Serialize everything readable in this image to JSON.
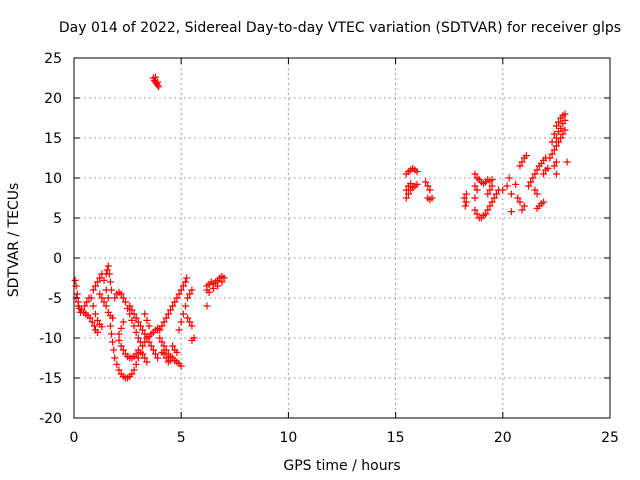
{
  "chart_data": {
    "type": "scatter",
    "title": "Day 014 of 2022, Sidereal Day-to-day VTEC variation (SDTVAR) for receiver glps",
    "xlabel": "GPS time / hours",
    "ylabel": "SDTVAR / TECUs",
    "xlim": [
      0,
      25
    ],
    "ylim": [
      -20,
      25
    ],
    "xticks": [
      0,
      5,
      10,
      15,
      20,
      25
    ],
    "yticks": [
      -20,
      -15,
      -10,
      -5,
      0,
      5,
      10,
      15,
      20,
      25
    ],
    "grid": true,
    "marker": "+",
    "color": "#ff0000",
    "series": [
      {
        "name": "SDTVAR",
        "points": [
          [
            0.05,
            -2.8
          ],
          [
            0.1,
            -3.5
          ],
          [
            0.15,
            -4.5
          ],
          [
            0.2,
            -5.5
          ],
          [
            0.25,
            -6.3
          ],
          [
            0.3,
            -6.8
          ],
          [
            0.1,
            -5.0
          ],
          [
            0.2,
            -6.0
          ],
          [
            0.35,
            -6.5
          ],
          [
            0.45,
            -6.8
          ],
          [
            0.55,
            -7.0
          ],
          [
            0.65,
            -7.2
          ],
          [
            0.75,
            -7.5
          ],
          [
            0.85,
            -8.0
          ],
          [
            0.95,
            -8.5
          ],
          [
            1.0,
            -9.0
          ],
          [
            1.1,
            -9.3
          ],
          [
            0.5,
            -6.0
          ],
          [
            0.6,
            -5.5
          ],
          [
            0.7,
            -5.0
          ],
          [
            0.8,
            -5.0
          ],
          [
            0.9,
            -6.0
          ],
          [
            1.0,
            -7.0
          ],
          [
            1.1,
            -7.8
          ],
          [
            1.2,
            -8.3
          ],
          [
            1.3,
            -8.6
          ],
          [
            0.9,
            -4.0
          ],
          [
            1.0,
            -3.5
          ],
          [
            1.1,
            -3.0
          ],
          [
            1.2,
            -2.5
          ],
          [
            1.3,
            -2.0
          ],
          [
            1.4,
            -2.8
          ],
          [
            1.5,
            -4.0
          ],
          [
            1.6,
            -5.0
          ],
          [
            1.2,
            -4.5
          ],
          [
            1.3,
            -5.0
          ],
          [
            1.4,
            -5.5
          ],
          [
            1.5,
            -6.0
          ],
          [
            1.6,
            -6.8
          ],
          [
            1.7,
            -7.2
          ],
          [
            1.8,
            -7.5
          ],
          [
            1.5,
            -2.0
          ],
          [
            1.55,
            -1.5
          ],
          [
            1.6,
            -1.0
          ],
          [
            1.65,
            -2.0
          ],
          [
            1.7,
            -3.0
          ],
          [
            1.75,
            -4.0
          ],
          [
            1.7,
            -8.5
          ],
          [
            1.75,
            -9.5
          ],
          [
            1.8,
            -10.5
          ],
          [
            1.85,
            -11.5
          ],
          [
            1.9,
            -12.5
          ],
          [
            2.0,
            -13.3
          ],
          [
            2.1,
            -14.0
          ],
          [
            2.2,
            -14.5
          ],
          [
            2.3,
            -14.8
          ],
          [
            2.4,
            -15.0
          ],
          [
            2.5,
            -15.0
          ],
          [
            2.6,
            -14.8
          ],
          [
            2.7,
            -14.5
          ],
          [
            2.8,
            -14.0
          ],
          [
            2.9,
            -13.3
          ],
          [
            3.0,
            -12.5
          ],
          [
            3.1,
            -11.8
          ],
          [
            3.2,
            -11.0
          ],
          [
            3.3,
            -10.5
          ],
          [
            3.4,
            -10.0
          ],
          [
            3.5,
            -9.8
          ],
          [
            3.6,
            -9.5
          ],
          [
            3.7,
            -9.3
          ],
          [
            3.8,
            -9.0
          ],
          [
            3.9,
            -8.8
          ],
          [
            1.9,
            -5.0
          ],
          [
            2.0,
            -4.5
          ],
          [
            2.1,
            -4.3
          ],
          [
            2.2,
            -4.5
          ],
          [
            2.3,
            -5.0
          ],
          [
            2.4,
            -5.5
          ],
          [
            2.5,
            -6.3
          ],
          [
            2.6,
            -7.0
          ],
          [
            2.7,
            -7.8
          ],
          [
            2.8,
            -8.5
          ],
          [
            2.9,
            -9.3
          ],
          [
            3.0,
            -10.0
          ],
          [
            2.3,
            -8.0
          ],
          [
            2.2,
            -8.8
          ],
          [
            2.1,
            -9.5
          ],
          [
            2.1,
            -10.3
          ],
          [
            2.2,
            -11.0
          ],
          [
            2.3,
            -11.5
          ],
          [
            2.4,
            -12.0
          ],
          [
            2.5,
            -12.3
          ],
          [
            2.6,
            -12.5
          ],
          [
            2.7,
            -12.5
          ],
          [
            2.8,
            -12.3
          ],
          [
            2.9,
            -12.0
          ],
          [
            3.0,
            -11.5
          ],
          [
            3.1,
            -10.5
          ],
          [
            2.6,
            -6.0
          ],
          [
            2.7,
            -6.5
          ],
          [
            2.8,
            -7.0
          ],
          [
            2.9,
            -7.5
          ],
          [
            3.0,
            -8.0
          ],
          [
            3.1,
            -8.5
          ],
          [
            3.2,
            -9.0
          ],
          [
            3.3,
            -9.5
          ],
          [
            3.4,
            -10.0
          ],
          [
            3.5,
            -10.5
          ],
          [
            3.6,
            -11.0
          ],
          [
            3.7,
            -11.5
          ],
          [
            3.8,
            -12.0
          ],
          [
            3.9,
            -12.5
          ],
          [
            3.3,
            -7.0
          ],
          [
            3.4,
            -7.8
          ],
          [
            3.5,
            -8.5
          ],
          [
            3.2,
            -12.0
          ],
          [
            3.3,
            -12.5
          ],
          [
            3.4,
            -13.0
          ],
          [
            3.7,
            22.5
          ],
          [
            3.75,
            22.2
          ],
          [
            3.8,
            22.0
          ],
          [
            3.85,
            21.8
          ],
          [
            3.9,
            21.6
          ],
          [
            3.95,
            21.4
          ],
          [
            3.8,
            22.6
          ],
          [
            3.9,
            22.0
          ],
          [
            3.9,
            -9.0
          ],
          [
            4.0,
            -10.0
          ],
          [
            4.1,
            -10.5
          ],
          [
            4.2,
            -11.0
          ],
          [
            4.3,
            -11.5
          ],
          [
            4.4,
            -12.0
          ],
          [
            4.5,
            -12.3
          ],
          [
            4.6,
            -12.5
          ],
          [
            4.7,
            -12.8
          ],
          [
            4.8,
            -13.0
          ],
          [
            4.9,
            -13.2
          ],
          [
            5.0,
            -13.5
          ],
          [
            4.6,
            -11.0
          ],
          [
            4.7,
            -11.5
          ],
          [
            4.8,
            -11.8
          ],
          [
            4.5,
            -12.8
          ],
          [
            4.4,
            -13.0
          ],
          [
            4.3,
            -12.5
          ],
          [
            4.2,
            -12.0
          ],
          [
            4.1,
            -11.8
          ],
          [
            4.0,
            -9.0
          ],
          [
            4.1,
            -8.5
          ],
          [
            4.2,
            -8.0
          ],
          [
            4.3,
            -7.5
          ],
          [
            4.4,
            -7.0
          ],
          [
            4.5,
            -6.5
          ],
          [
            4.6,
            -6.0
          ],
          [
            4.7,
            -5.5
          ],
          [
            4.8,
            -5.0
          ],
          [
            4.9,
            -4.5
          ],
          [
            5.0,
            -4.0
          ],
          [
            5.1,
            -3.5
          ],
          [
            5.2,
            -3.0
          ],
          [
            5.25,
            -2.5
          ],
          [
            4.9,
            -9.0
          ],
          [
            5.0,
            -8.0
          ],
          [
            5.1,
            -7.0
          ],
          [
            5.2,
            -6.0
          ],
          [
            5.3,
            -5.0
          ],
          [
            5.4,
            -4.5
          ],
          [
            5.5,
            -4.0
          ],
          [
            5.3,
            -7.5
          ],
          [
            5.4,
            -8.0
          ],
          [
            5.5,
            -8.5
          ],
          [
            5.5,
            -10.3
          ],
          [
            5.6,
            -10.0
          ],
          [
            6.2,
            -3.5
          ],
          [
            6.3,
            -3.3
          ],
          [
            6.4,
            -3.0
          ],
          [
            6.5,
            -3.2
          ],
          [
            6.6,
            -3.0
          ],
          [
            6.7,
            -2.8
          ],
          [
            6.8,
            -2.5
          ],
          [
            6.9,
            -2.3
          ],
          [
            7.0,
            -2.5
          ],
          [
            6.2,
            -4.0
          ],
          [
            6.3,
            -4.3
          ],
          [
            6.5,
            -3.8
          ],
          [
            6.7,
            -3.5
          ],
          [
            6.9,
            -3.0
          ],
          [
            6.2,
            -6.0
          ],
          [
            15.5,
            7.5
          ],
          [
            15.6,
            8.0
          ],
          [
            15.7,
            8.5
          ],
          [
            15.8,
            8.8
          ],
          [
            15.9,
            9.0
          ],
          [
            16.0,
            9.2
          ],
          [
            15.5,
            8.5
          ],
          [
            15.6,
            9.0
          ],
          [
            15.7,
            9.3
          ],
          [
            15.5,
            10.5
          ],
          [
            15.6,
            10.8
          ],
          [
            15.7,
            11.0
          ],
          [
            15.8,
            11.2
          ],
          [
            15.9,
            11.0
          ],
          [
            16.0,
            10.8
          ],
          [
            16.4,
            9.5
          ],
          [
            16.5,
            9.0
          ],
          [
            16.6,
            8.5
          ],
          [
            16.5,
            7.5
          ],
          [
            16.6,
            7.3
          ],
          [
            16.7,
            7.5
          ],
          [
            18.2,
            7.5
          ],
          [
            18.3,
            7.0
          ],
          [
            18.25,
            6.5
          ],
          [
            18.3,
            8.0
          ],
          [
            18.7,
            10.5
          ],
          [
            18.8,
            10.0
          ],
          [
            18.9,
            9.8
          ],
          [
            19.0,
            9.5
          ],
          [
            19.1,
            9.3
          ],
          [
            19.2,
            9.5
          ],
          [
            19.3,
            9.8
          ],
          [
            19.4,
            9.6
          ],
          [
            19.5,
            9.8
          ],
          [
            18.7,
            9.0
          ],
          [
            18.8,
            8.5
          ],
          [
            18.7,
            7.5
          ],
          [
            18.7,
            6.0
          ],
          [
            18.8,
            5.5
          ],
          [
            18.9,
            5.0
          ],
          [
            19.0,
            5.0
          ],
          [
            19.1,
            5.3
          ],
          [
            19.2,
            5.5
          ],
          [
            19.3,
            6.0
          ],
          [
            19.4,
            6.5
          ],
          [
            19.5,
            7.0
          ],
          [
            19.6,
            7.5
          ],
          [
            19.7,
            8.0
          ],
          [
            19.8,
            8.5
          ],
          [
            19.3,
            8.0
          ],
          [
            19.4,
            8.5
          ],
          [
            19.5,
            9.0
          ],
          [
            20.0,
            8.5
          ],
          [
            20.2,
            9.0
          ],
          [
            20.3,
            10.0
          ],
          [
            20.4,
            8.0
          ],
          [
            20.4,
            5.8
          ],
          [
            20.6,
            9.2
          ],
          [
            20.7,
            7.5
          ],
          [
            20.8,
            11.5
          ],
          [
            20.8,
            7.0
          ],
          [
            20.9,
            12.0
          ],
          [
            21.0,
            12.5
          ],
          [
            21.1,
            12.8
          ],
          [
            20.9,
            6.0
          ],
          [
            21.0,
            6.5
          ],
          [
            21.2,
            9.0
          ],
          [
            21.3,
            9.5
          ],
          [
            21.4,
            10.0
          ],
          [
            21.5,
            10.5
          ],
          [
            21.6,
            11.0
          ],
          [
            21.7,
            11.5
          ],
          [
            21.5,
            8.5
          ],
          [
            21.6,
            8.0
          ],
          [
            21.6,
            6.2
          ],
          [
            21.7,
            6.5
          ],
          [
            21.8,
            6.8
          ],
          [
            21.9,
            7.0
          ],
          [
            21.8,
            11.8
          ],
          [
            21.9,
            12.2
          ],
          [
            22.0,
            12.5
          ],
          [
            21.9,
            10.5
          ],
          [
            22.0,
            11.0
          ],
          [
            22.1,
            11.2
          ],
          [
            22.2,
            12.5
          ],
          [
            22.3,
            13.0
          ],
          [
            22.4,
            13.5
          ],
          [
            22.5,
            14.0
          ],
          [
            22.6,
            14.5
          ],
          [
            22.7,
            15.0
          ],
          [
            22.8,
            15.5
          ],
          [
            22.9,
            16.0
          ],
          [
            22.3,
            14.5
          ],
          [
            22.4,
            15.5
          ],
          [
            22.5,
            16.5
          ],
          [
            22.6,
            17.0
          ],
          [
            22.7,
            17.5
          ],
          [
            22.8,
            17.8
          ],
          [
            22.9,
            18.0
          ],
          [
            22.5,
            15.0
          ],
          [
            22.6,
            15.8
          ],
          [
            22.7,
            16.2
          ],
          [
            22.8,
            16.8
          ],
          [
            22.9,
            17.2
          ],
          [
            22.4,
            11.5
          ],
          [
            22.5,
            12.0
          ],
          [
            23.0,
            12.0
          ],
          [
            22.5,
            10.5
          ]
        ]
      }
    ]
  }
}
